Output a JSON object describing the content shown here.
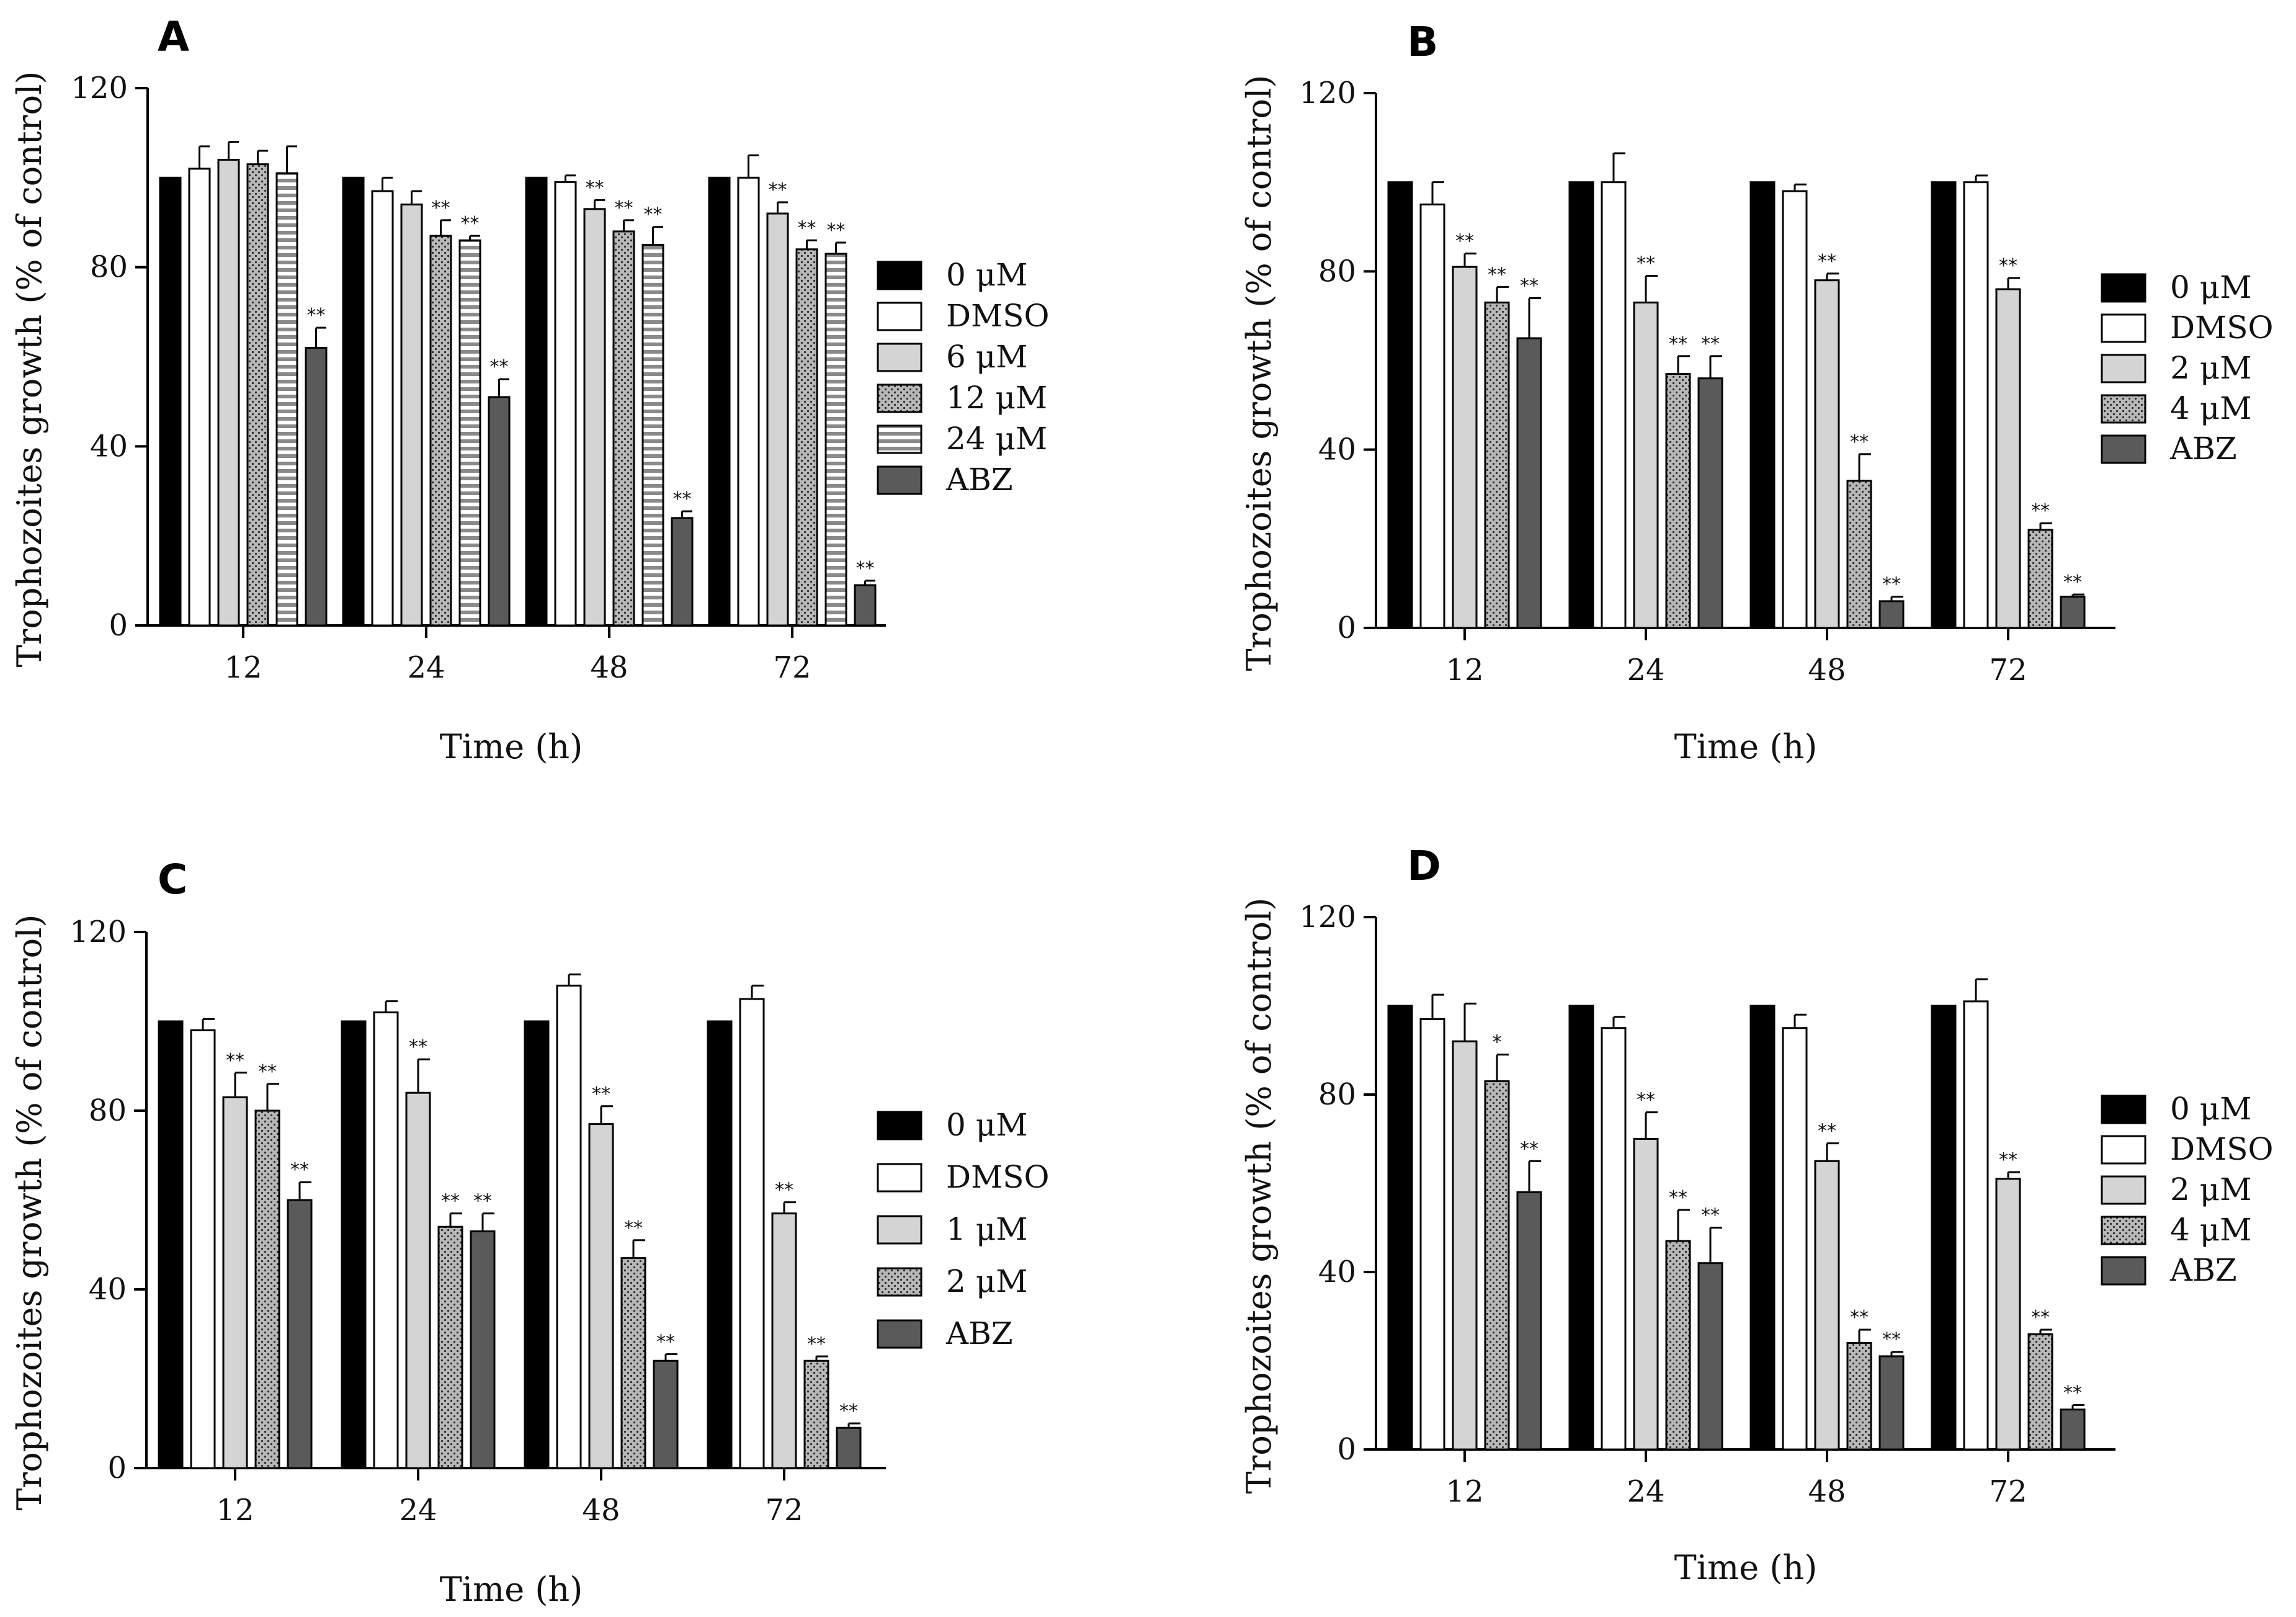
{
  "chart_data": [
    {
      "panel": "A",
      "type": "bar",
      "xlabel": "Time (h)",
      "ylabel": "Trophozoites growth  (% of control)",
      "ylim": [
        0,
        120
      ],
      "yticks": [
        0,
        40,
        80,
        120
      ],
      "categories": [
        "12",
        "24",
        "48",
        "72"
      ],
      "legend_position": "right",
      "series": [
        {
          "name": "0 μM",
          "pattern": "solid-black",
          "values": [
            100,
            100,
            100,
            100
          ],
          "errors": [
            0,
            0,
            0,
            0
          ],
          "sig": [
            "",
            "",
            "",
            ""
          ]
        },
        {
          "name": "DMSO",
          "pattern": "white",
          "values": [
            102,
            97,
            99,
            100
          ],
          "errors": [
            5,
            3,
            1.5,
            5
          ],
          "sig": [
            "",
            "",
            "",
            ""
          ]
        },
        {
          "name": "6 μM",
          "pattern": "light-gray",
          "values": [
            104,
            94,
            93,
            92
          ],
          "errors": [
            4,
            3,
            2,
            2.5
          ],
          "sig": [
            "",
            "",
            "**",
            "**"
          ]
        },
        {
          "name": "12 μM",
          "pattern": "dotted",
          "values": [
            103,
            87,
            88,
            84
          ],
          "errors": [
            3,
            3.5,
            2.5,
            2
          ],
          "sig": [
            "",
            "**",
            "**",
            "**"
          ]
        },
        {
          "name": "24 μM",
          "pattern": "horizontal-lines",
          "values": [
            101,
            86,
            85,
            83
          ],
          "errors": [
            6,
            1,
            4,
            2.5
          ],
          "sig": [
            "",
            "**",
            "**",
            "**"
          ]
        },
        {
          "name": "ABZ",
          "pattern": "dark-gray",
          "values": [
            62,
            51,
            24,
            9
          ],
          "errors": [
            4.5,
            4,
            1.5,
            1
          ],
          "sig": [
            "**",
            "**",
            "**",
            "**"
          ]
        }
      ]
    },
    {
      "panel": "B",
      "type": "bar",
      "xlabel": "Time (h)",
      "ylabel": "Trophozoites growth (% of control)",
      "ylim": [
        0,
        120
      ],
      "yticks": [
        0,
        40,
        80,
        120
      ],
      "categories": [
        "12",
        "24",
        "48",
        "72"
      ],
      "legend_position": "right",
      "series": [
        {
          "name": "0 μM",
          "pattern": "solid-black",
          "values": [
            100,
            100,
            100,
            100
          ],
          "errors": [
            0,
            0,
            0,
            0
          ],
          "sig": [
            "",
            "",
            "",
            ""
          ]
        },
        {
          "name": "DMSO",
          "pattern": "white",
          "values": [
            95,
            100,
            98,
            100
          ],
          "errors": [
            5,
            6.5,
            1.5,
            1.5
          ],
          "sig": [
            "",
            "",
            "",
            ""
          ]
        },
        {
          "name": "2 μM",
          "pattern": "light-gray",
          "values": [
            81,
            73,
            78,
            76
          ],
          "errors": [
            3,
            6,
            1.5,
            2.5
          ],
          "sig": [
            "**",
            "**",
            "**",
            "**"
          ]
        },
        {
          "name": "4 μM",
          "pattern": "dotted",
          "values": [
            73,
            57,
            33,
            22
          ],
          "errors": [
            3.5,
            4,
            6,
            1.5
          ],
          "sig": [
            "**",
            "**",
            "**",
            "**"
          ]
        },
        {
          "name": "ABZ",
          "pattern": "dark-gray",
          "values": [
            65,
            56,
            6,
            7
          ],
          "errors": [
            9,
            5,
            1,
            0.5
          ],
          "sig": [
            "**",
            "**",
            "**",
            "**"
          ]
        }
      ]
    },
    {
      "panel": "C",
      "type": "bar",
      "xlabel": "Time (h)",
      "ylabel": "Trophozoites growth (% of control)",
      "ylim": [
        0,
        120
      ],
      "yticks": [
        0,
        40,
        80,
        120
      ],
      "categories": [
        "12",
        "24",
        "48",
        "72"
      ],
      "legend_position": "right",
      "series": [
        {
          "name": "0 μM",
          "pattern": "solid-black",
          "values": [
            100,
            100,
            100,
            100
          ],
          "errors": [
            0,
            0,
            0,
            0
          ],
          "sig": [
            "",
            "",
            "",
            ""
          ]
        },
        {
          "name": "DMSO",
          "pattern": "white",
          "values": [
            98,
            102,
            108,
            105
          ],
          "errors": [
            2.5,
            2.5,
            2.5,
            3
          ],
          "sig": [
            "",
            "",
            "",
            ""
          ]
        },
        {
          "name": "1 μM",
          "pattern": "light-gray",
          "values": [
            83,
            84,
            77,
            57
          ],
          "errors": [
            5.5,
            7.5,
            4,
            2.5
          ],
          "sig": [
            "**",
            "**",
            "**",
            "**"
          ]
        },
        {
          "name": "2 μM",
          "pattern": "dotted",
          "values": [
            80,
            54,
            47,
            24
          ],
          "errors": [
            6,
            3,
            4,
            1
          ],
          "sig": [
            "**",
            "**",
            "**",
            "**"
          ]
        },
        {
          "name": "ABZ",
          "pattern": "dark-gray",
          "values": [
            60,
            53,
            24,
            9
          ],
          "errors": [
            4,
            4,
            1.5,
            1
          ],
          "sig": [
            "**",
            "**",
            "**",
            "**"
          ]
        }
      ]
    },
    {
      "panel": "D",
      "type": "bar",
      "xlabel": "Time (h)",
      "ylabel": "Trophozoites growth  (% of control)",
      "ylim": [
        0,
        120
      ],
      "yticks": [
        0,
        40,
        80,
        120
      ],
      "categories": [
        "12",
        "24",
        "48",
        "72"
      ],
      "legend_position": "right",
      "series": [
        {
          "name": "0 μM",
          "pattern": "solid-black",
          "values": [
            100,
            100,
            100,
            100
          ],
          "errors": [
            0,
            0,
            0,
            0
          ],
          "sig": [
            "",
            "",
            "",
            ""
          ]
        },
        {
          "name": "DMSO",
          "pattern": "white",
          "values": [
            97,
            95,
            95,
            101
          ],
          "errors": [
            5.5,
            2.5,
            3,
            5
          ],
          "sig": [
            "",
            "",
            "",
            ""
          ]
        },
        {
          "name": "2 μM",
          "pattern": "light-gray",
          "values": [
            92,
            70,
            65,
            61
          ],
          "errors": [
            8.5,
            6,
            4,
            1.5
          ],
          "sig": [
            "",
            "**",
            "**",
            "**"
          ]
        },
        {
          "name": "4 μM",
          "pattern": "dotted",
          "values": [
            83,
            47,
            24,
            26
          ],
          "errors": [
            6,
            7,
            3,
            1
          ],
          "sig": [
            "*",
            "**",
            "**",
            "**"
          ]
        },
        {
          "name": "ABZ",
          "pattern": "dark-gray",
          "values": [
            58,
            42,
            21,
            9
          ],
          "errors": [
            7,
            8,
            1,
            1
          ],
          "sig": [
            "**",
            "**",
            "**",
            "**"
          ]
        }
      ]
    }
  ]
}
